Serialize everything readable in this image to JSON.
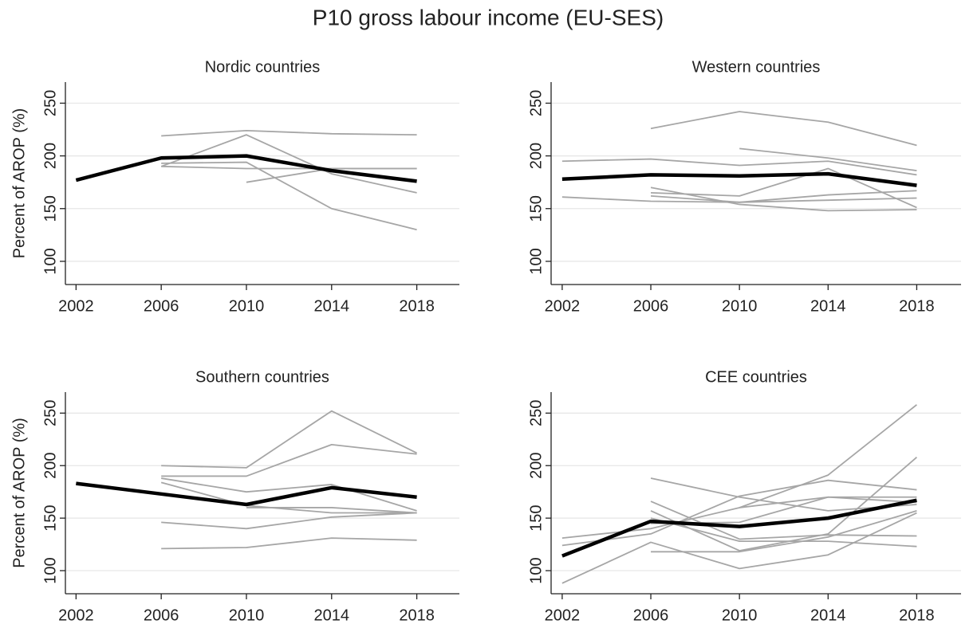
{
  "title": "P10 gross labour income (EU-SES)",
  "chart_data": [
    {
      "type": "line",
      "title": "Nordic countries",
      "ylabel": "Percent of AROP (%)",
      "x": [
        2002,
        2006,
        2010,
        2014,
        2018
      ],
      "xlim": [
        2001.5,
        2020
      ],
      "xticks": [
        2002,
        2006,
        2010,
        2014,
        2018
      ],
      "ylim": [
        78,
        270
      ],
      "yticks": [
        100,
        150,
        200,
        250
      ],
      "grid": true,
      "series": [
        {
          "color": "#a6a6a6",
          "values": [
            null,
            219,
            224,
            221,
            220
          ]
        },
        {
          "color": "#a6a6a6",
          "values": [
            null,
            190,
            220,
            183,
            165
          ]
        },
        {
          "color": "#a6a6a6",
          "values": [
            null,
            193,
            194,
            150,
            130
          ]
        },
        {
          "color": "#a6a6a6",
          "values": [
            null,
            190,
            188,
            188,
            188
          ]
        },
        {
          "color": "#a6a6a6",
          "values": [
            null,
            null,
            175,
            188,
            188
          ]
        },
        {
          "color": "#000000",
          "values": [
            177,
            198,
            200,
            186,
            176
          ]
        }
      ]
    },
    {
      "type": "line",
      "title": "Western countries",
      "x": [
        2002,
        2006,
        2010,
        2014,
        2018
      ],
      "xlim": [
        2001.5,
        2020
      ],
      "xticks": [
        2002,
        2006,
        2010,
        2014,
        2018
      ],
      "ylim": [
        78,
        270
      ],
      "yticks": [
        100,
        150,
        200,
        250
      ],
      "grid": true,
      "series": [
        {
          "color": "#a6a6a6",
          "values": [
            null,
            226,
            242,
            232,
            210
          ]
        },
        {
          "color": "#a6a6a6",
          "values": [
            195,
            197,
            191,
            195,
            182
          ]
        },
        {
          "color": "#a6a6a6",
          "values": [
            null,
            null,
            207,
            198,
            186
          ]
        },
        {
          "color": "#a6a6a6",
          "values": [
            null,
            165,
            162,
            188,
            151
          ]
        },
        {
          "color": "#a6a6a6",
          "values": [
            161,
            157,
            156,
            163,
            167
          ]
        },
        {
          "color": "#a6a6a6",
          "values": [
            null,
            170,
            154,
            148,
            149
          ]
        },
        {
          "color": "#a6a6a6",
          "values": [
            null,
            162,
            156,
            158,
            160
          ]
        },
        {
          "color": "#000000",
          "values": [
            178,
            182,
            181,
            183,
            172
          ]
        }
      ]
    },
    {
      "type": "line",
      "title": "Southern countries",
      "ylabel": "Percent of AROP (%)",
      "x": [
        2002,
        2006,
        2010,
        2014,
        2018
      ],
      "xlim": [
        2001.5,
        2020
      ],
      "xticks": [
        2002,
        2006,
        2010,
        2014,
        2018
      ],
      "ylim": [
        78,
        270
      ],
      "yticks": [
        100,
        150,
        200,
        250
      ],
      "grid": true,
      "series": [
        {
          "color": "#a6a6a6",
          "values": [
            null,
            200,
            198,
            252,
            212
          ]
        },
        {
          "color": "#a6a6a6",
          "values": [
            null,
            190,
            190,
            220,
            211
          ]
        },
        {
          "color": "#a6a6a6",
          "values": [
            null,
            184,
            162,
            155,
            155
          ]
        },
        {
          "color": "#a6a6a6",
          "values": [
            null,
            188,
            175,
            182,
            157
          ]
        },
        {
          "color": "#a6a6a6",
          "values": [
            null,
            146,
            140,
            151,
            155
          ]
        },
        {
          "color": "#a6a6a6",
          "values": [
            null,
            121,
            122,
            131,
            129
          ]
        },
        {
          "color": "#a6a6a6",
          "values": [
            null,
            null,
            160,
            160,
            155
          ]
        },
        {
          "color": "#000000",
          "values": [
            183,
            173,
            163,
            179,
            170
          ]
        }
      ]
    },
    {
      "type": "line",
      "title": "CEE countries",
      "x": [
        2002,
        2006,
        2010,
        2014,
        2018
      ],
      "xlim": [
        2001.5,
        2020
      ],
      "xticks": [
        2002,
        2006,
        2010,
        2014,
        2018
      ],
      "ylim": [
        78,
        270
      ],
      "yticks": [
        100,
        150,
        200,
        250
      ],
      "grid": true,
      "series": [
        {
          "color": "#a6a6a6",
          "values": [
            88,
            127,
            102,
            115,
            155
          ]
        },
        {
          "color": "#a6a6a6",
          "values": [
            131,
            140,
            160,
            191,
            258
          ]
        },
        {
          "color": "#a6a6a6",
          "values": [
            null,
            188,
            170,
            157,
            163
          ]
        },
        {
          "color": "#a6a6a6",
          "values": [
            null,
            166,
            130,
            134,
            133
          ]
        },
        {
          "color": "#a6a6a6",
          "values": [
            null,
            157,
            119,
            135,
            208
          ]
        },
        {
          "color": "#a6a6a6",
          "values": [
            124,
            135,
            171,
            186,
            177
          ]
        },
        {
          "color": "#a6a6a6",
          "values": [
            null,
            118,
            118,
            132,
            157
          ]
        },
        {
          "color": "#a6a6a6",
          "values": [
            null,
            145,
            146,
            170,
            170
          ]
        },
        {
          "color": "#a6a6a6",
          "values": [
            null,
            150,
            128,
            128,
            123
          ]
        },
        {
          "color": "#a6a6a6",
          "values": [
            null,
            null,
            160,
            170,
            165
          ]
        },
        {
          "color": "#000000",
          "values": [
            114,
            147,
            142,
            150,
            167
          ]
        }
      ]
    }
  ]
}
